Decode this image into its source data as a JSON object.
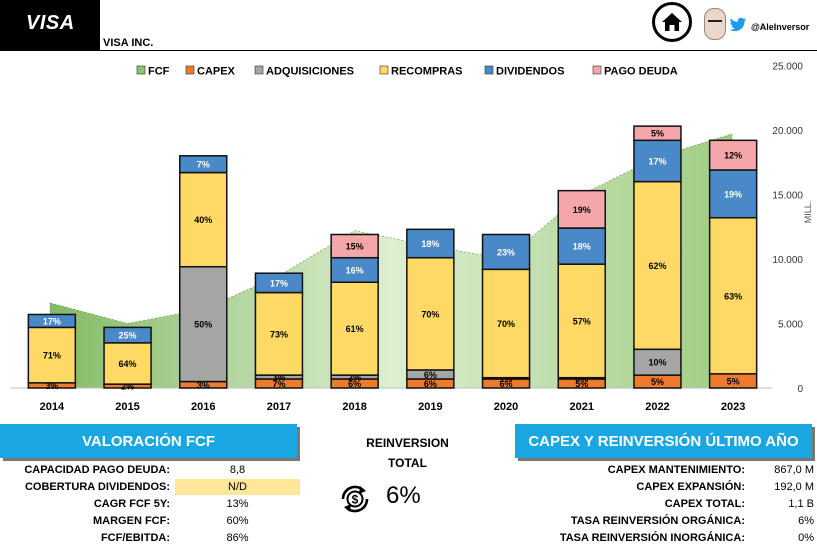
{
  "header": {
    "logo_text": "VISA",
    "company": "VISA INC.",
    "handle": "@AleInversor"
  },
  "chart_data": {
    "type": "bar",
    "stacked": true,
    "categories": [
      "2014",
      "2015",
      "2016",
      "2017",
      "2018",
      "2019",
      "2020",
      "2021",
      "2022",
      "2023"
    ],
    "yunit": "MILL.",
    "ylim": [
      0,
      25000
    ],
    "yticks": [
      "0",
      "5.000",
      "10.000",
      "15.000",
      "20.000",
      "25.000"
    ],
    "legend_position": "top",
    "fcf": {
      "name": "FCF",
      "values": [
        6600,
        5000,
        6100,
        8700,
        12200,
        11000,
        10000,
        15000,
        17900,
        19700
      ],
      "color": "#8fc46e"
    },
    "series": [
      {
        "name": "CAPEX",
        "color": "#ee7b2d",
        "values": [
          400,
          300,
          500,
          700,
          700,
          700,
          700,
          700,
          1000,
          1100
        ],
        "labels": [
          "3%",
          "2%",
          "3%",
          "7%",
          "6%",
          "6%",
          "6%",
          "5%",
          "5%",
          "5%"
        ]
      },
      {
        "name": "ADQUISICIONES",
        "color": "#a5a5a5",
        "values": [
          0,
          0,
          8900,
          300,
          300,
          700,
          100,
          100,
          2000,
          0
        ],
        "labels": [
          "",
          "",
          "50%",
          "3%",
          "2%",
          "6%",
          "1%",
          "0%",
          "10%",
          ""
        ]
      },
      {
        "name": "RECOMPRAS",
        "color": "#ffd966",
        "values": [
          4300,
          3200,
          7300,
          6400,
          7200,
          8700,
          8400,
          8800,
          13000,
          12100
        ],
        "labels": [
          "71%",
          "64%",
          "40%",
          "73%",
          "61%",
          "70%",
          "70%",
          "57%",
          "62%",
          "63%"
        ]
      },
      {
        "name": "DIVIDENDOS",
        "color": "#4a89c8",
        "values": [
          1000,
          1200,
          1300,
          1500,
          1900,
          2200,
          2700,
          2800,
          3200,
          3700
        ],
        "labels": [
          "17%",
          "25%",
          "7%",
          "17%",
          "16%",
          "18%",
          "23%",
          "18%",
          "17%",
          "19%"
        ]
      },
      {
        "name": "PAGO DEUDA",
        "color": "#f4a6aa",
        "values": [
          0,
          0,
          0,
          0,
          1800,
          0,
          0,
          2900,
          1100,
          2300
        ],
        "labels": [
          "",
          "",
          "",
          "",
          "15%",
          "",
          "",
          "19%",
          "5%",
          "12%"
        ]
      }
    ]
  },
  "valoracion": {
    "title": "VALORACIÓN FCF",
    "rows": [
      {
        "label": "CAPACIDAD PAGO DEUDA:",
        "value": "8,8"
      },
      {
        "label": "COBERTURA DIVIDENDOS:",
        "value": "N/D"
      },
      {
        "label": "CAGR FCF 5Y:",
        "value": "13%"
      },
      {
        "label": "MARGEN FCF:",
        "value": "60%"
      },
      {
        "label": "FCF/EBITDA:",
        "value": "86%"
      }
    ],
    "highlight_color": "#ffe699"
  },
  "reinversion": {
    "title_line1": "REINVERSION",
    "title_line2": "TOTAL",
    "value": "6%"
  },
  "capex": {
    "title": "CAPEX Y REINVERSIÓN ÚLTIMO AÑO",
    "rows": [
      {
        "label": "CAPEX MANTENIMIENTO:",
        "value": "867,0 M"
      },
      {
        "label": "CAPEX EXPANSIÓN:",
        "value": "192,0 M"
      },
      {
        "label": "CAPEX TOTAL:",
        "value": "1,1 B"
      },
      {
        "label": "TASA REINVERSIÓN ORGÁNICA:",
        "value": "6%"
      },
      {
        "label": "TASA REINVERSIÓN INORGÁNICA:",
        "value": "0%"
      }
    ]
  },
  "icons": [
    "home-icon",
    "avatar",
    "twitter-icon",
    "dollar-cycle-icon"
  ]
}
